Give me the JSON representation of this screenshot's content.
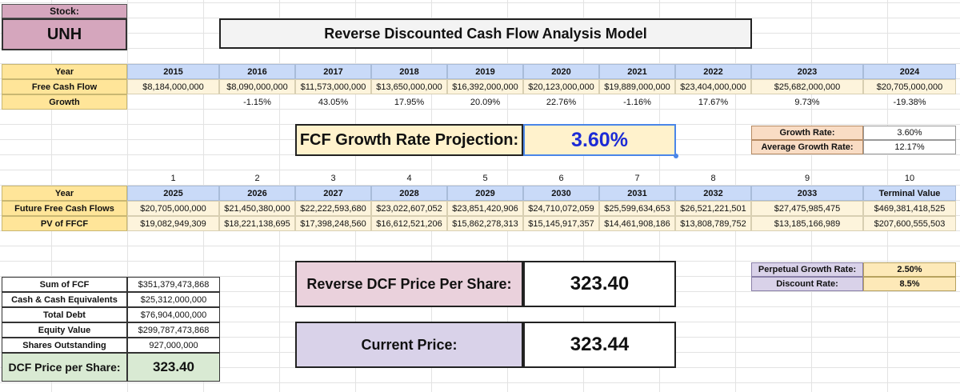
{
  "stock": {
    "label": "Stock:",
    "ticker": "UNH"
  },
  "title": "Reverse Discounted Cash Flow Analysis Model",
  "historical": {
    "year_label": "Year",
    "fcf_label": "Free Cash Flow",
    "growth_label": "Growth",
    "years": [
      "2015",
      "2016",
      "2017",
      "2018",
      "2019",
      "2020",
      "2021",
      "2022",
      "2023",
      "2024"
    ],
    "fcf": [
      "$8,184,000,000",
      "$8,090,000,000",
      "$11,573,000,000",
      "$13,650,000,000",
      "$16,392,000,000",
      "$20,123,000,000",
      "$19,889,000,000",
      "$23,404,000,000",
      "$25,682,000,000",
      "$20,705,000,000"
    ],
    "growth": [
      "",
      "-1.15%",
      "43.05%",
      "17.95%",
      "20.09%",
      "22.76%",
      "-1.16%",
      "17.67%",
      "9.73%",
      "-19.38%"
    ]
  },
  "projection": {
    "label": "FCF Growth Rate Projection:",
    "value": "3.60%"
  },
  "rates": {
    "growth_label": "Growth Rate:",
    "growth_value": "3.60%",
    "avg_label": "Average Growth Rate:",
    "avg_value": "12.17%"
  },
  "future": {
    "period_numbers": [
      "1",
      "2",
      "3",
      "4",
      "5",
      "6",
      "7",
      "8",
      "9",
      "10"
    ],
    "year_label": "Year",
    "ffcf_label": "Future Free Cash Flows",
    "pv_label": "PV of FFCF",
    "years": [
      "2025",
      "2026",
      "2027",
      "2028",
      "2029",
      "2030",
      "2031",
      "2032",
      "2033",
      "Terminal Value"
    ],
    "ffcf": [
      "$20,705,000,000",
      "$21,450,380,000",
      "$22,222,593,680",
      "$23,022,607,052",
      "$23,851,420,906",
      "$24,710,072,059",
      "$25,599,634,653",
      "$26,521,221,501",
      "$27,475,985,475",
      "$469,381,418,525"
    ],
    "pv": [
      "$19,082,949,309",
      "$18,221,138,695",
      "$17,398,248,560",
      "$16,612,521,206",
      "$15,862,278,313",
      "$15,145,917,357",
      "$14,461,908,186",
      "$13,808,789,752",
      "$13,185,166,989",
      "$207,600,555,503"
    ]
  },
  "assumptions": {
    "pgr_label": "Perpetual Growth Rate:",
    "pgr_value": "2.50%",
    "dr_label": "Discount Rate:",
    "dr_value": "8.5%"
  },
  "summary": {
    "rows": [
      {
        "label": "Sum of FCF",
        "value": "$351,379,473,868"
      },
      {
        "label": "Cash & Cash Equivalents",
        "value": "$25,312,000,000"
      },
      {
        "label": "Total Debt",
        "value": "$76,904,000,000"
      },
      {
        "label": "Equity Value",
        "value": "$299,787,473,868"
      },
      {
        "label": "Shares Outstanding",
        "value": "927,000,000"
      }
    ],
    "dcf_label": "DCF Price per Share:",
    "dcf_value": "323.40"
  },
  "reverse": {
    "label": "Reverse DCF Price Per Share:",
    "value": "323.40"
  },
  "current": {
    "label": "Current Price:",
    "value": "323.44"
  }
}
